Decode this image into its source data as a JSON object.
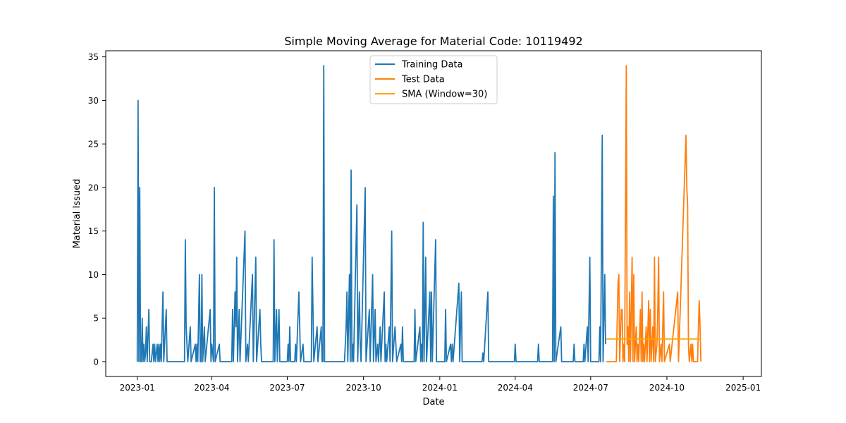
{
  "chart_data": {
    "type": "line",
    "title": "Simple Moving Average for Material Code: 10119492",
    "xlabel": "Date",
    "ylabel": "Material Issued",
    "xlim": [
      "2022-11-24",
      "2025-01-23"
    ],
    "ylim": [
      -1.7,
      35.7
    ],
    "x_ticks": [
      "2023-01",
      "2023-04",
      "2023-07",
      "2023-10",
      "2024-01",
      "2024-04",
      "2024-07",
      "2024-10",
      "2025-01"
    ],
    "y_ticks": [
      0,
      5,
      10,
      15,
      20,
      25,
      30,
      35
    ],
    "grid": false,
    "legend_position": "top-center",
    "series": [
      {
        "name": "Training Data",
        "color": "#1f77b4",
        "points": [
          [
            "2023-01-01",
            0
          ],
          [
            "2023-01-02",
            30
          ],
          [
            "2023-01-03",
            0
          ],
          [
            "2023-01-04",
            20
          ],
          [
            "2023-01-05",
            0
          ],
          [
            "2023-01-06",
            0
          ],
          [
            "2023-01-07",
            5
          ],
          [
            "2023-01-08",
            0
          ],
          [
            "2023-01-09",
            2
          ],
          [
            "2023-01-10",
            0
          ],
          [
            "2023-01-11",
            1
          ],
          [
            "2023-01-12",
            4
          ],
          [
            "2023-01-13",
            0
          ],
          [
            "2023-01-15",
            6
          ],
          [
            "2023-01-16",
            0
          ],
          [
            "2023-01-18",
            0
          ],
          [
            "2023-01-20",
            2
          ],
          [
            "2023-01-21",
            0
          ],
          [
            "2023-01-22",
            2
          ],
          [
            "2023-01-23",
            0
          ],
          [
            "2023-01-25",
            2
          ],
          [
            "2023-01-26",
            0
          ],
          [
            "2023-01-27",
            2
          ],
          [
            "2023-01-28",
            0
          ],
          [
            "2023-01-29",
            2
          ],
          [
            "2023-01-30",
            0
          ],
          [
            "2023-02-01",
            8
          ],
          [
            "2023-02-02",
            0
          ],
          [
            "2023-02-05",
            6
          ],
          [
            "2023-02-06",
            0
          ],
          [
            "2023-02-27",
            0
          ],
          [
            "2023-02-28",
            14
          ],
          [
            "2023-03-01",
            4
          ],
          [
            "2023-03-02",
            2
          ],
          [
            "2023-03-03",
            0
          ],
          [
            "2023-03-06",
            4
          ],
          [
            "2023-03-07",
            0
          ],
          [
            "2023-03-12",
            2
          ],
          [
            "2023-03-13",
            0
          ],
          [
            "2023-03-14",
            2
          ],
          [
            "2023-03-15",
            0
          ],
          [
            "2023-03-17",
            10
          ],
          [
            "2023-03-18",
            0
          ],
          [
            "2023-03-19",
            0
          ],
          [
            "2023-03-20",
            10
          ],
          [
            "2023-03-21",
            0
          ],
          [
            "2023-03-23",
            4
          ],
          [
            "2023-03-24",
            0
          ],
          [
            "2023-03-30",
            6
          ],
          [
            "2023-03-31",
            0
          ],
          [
            "2023-04-01",
            2
          ],
          [
            "2023-04-03",
            0
          ],
          [
            "2023-04-04",
            20
          ],
          [
            "2023-04-05",
            0
          ],
          [
            "2023-04-10",
            2
          ],
          [
            "2023-04-11",
            0
          ],
          [
            "2023-04-25",
            0
          ],
          [
            "2023-04-26",
            6
          ],
          [
            "2023-04-27",
            0
          ],
          [
            "2023-04-29",
            8
          ],
          [
            "2023-04-30",
            4
          ],
          [
            "2023-05-01",
            12
          ],
          [
            "2023-05-02",
            0
          ],
          [
            "2023-05-04",
            6
          ],
          [
            "2023-05-05",
            0
          ],
          [
            "2023-05-11",
            15
          ],
          [
            "2023-05-12",
            0
          ],
          [
            "2023-05-14",
            2
          ],
          [
            "2023-05-15",
            0
          ],
          [
            "2023-05-20",
            10
          ],
          [
            "2023-05-21",
            0
          ],
          [
            "2023-05-24",
            12
          ],
          [
            "2023-05-25",
            0
          ],
          [
            "2023-05-29",
            6
          ],
          [
            "2023-05-30",
            2
          ],
          [
            "2023-05-31",
            0
          ],
          [
            "2023-06-14",
            0
          ],
          [
            "2023-06-15",
            14
          ],
          [
            "2023-06-16",
            0
          ],
          [
            "2023-06-18",
            6
          ],
          [
            "2023-06-19",
            0
          ],
          [
            "2023-06-21",
            6
          ],
          [
            "2023-06-22",
            0
          ],
          [
            "2023-07-01",
            0
          ],
          [
            "2023-07-02",
            2
          ],
          [
            "2023-07-03",
            0
          ],
          [
            "2023-07-04",
            4
          ],
          [
            "2023-07-05",
            0
          ],
          [
            "2023-07-10",
            0
          ],
          [
            "2023-07-11",
            2
          ],
          [
            "2023-07-12",
            0
          ],
          [
            "2023-07-15",
            8
          ],
          [
            "2023-07-16",
            4
          ],
          [
            "2023-07-17",
            0
          ],
          [
            "2023-07-20",
            2
          ],
          [
            "2023-07-21",
            0
          ],
          [
            "2023-07-30",
            0
          ],
          [
            "2023-07-31",
            12
          ],
          [
            "2023-08-01",
            6
          ],
          [
            "2023-08-02",
            0
          ],
          [
            "2023-08-06",
            4
          ],
          [
            "2023-08-07",
            0
          ],
          [
            "2023-08-11",
            4
          ],
          [
            "2023-08-12",
            0
          ],
          [
            "2023-08-13",
            0
          ],
          [
            "2023-08-14",
            34
          ],
          [
            "2023-08-15",
            0
          ],
          [
            "2023-09-08",
            0
          ],
          [
            "2023-09-09",
            2
          ],
          [
            "2023-09-10",
            4
          ],
          [
            "2023-09-11",
            8
          ],
          [
            "2023-09-12",
            0
          ],
          [
            "2023-09-14",
            10
          ],
          [
            "2023-09-15",
            0
          ],
          [
            "2023-09-16",
            22
          ],
          [
            "2023-09-17",
            0
          ],
          [
            "2023-09-18",
            2
          ],
          [
            "2023-09-19",
            0
          ],
          [
            "2023-09-23",
            18
          ],
          [
            "2023-09-24",
            0
          ],
          [
            "2023-09-26",
            8
          ],
          [
            "2023-09-27",
            2
          ],
          [
            "2023-09-28",
            0
          ],
          [
            "2023-10-03",
            20
          ],
          [
            "2023-10-04",
            0
          ],
          [
            "2023-10-08",
            6
          ],
          [
            "2023-10-09",
            0
          ],
          [
            "2023-10-12",
            10
          ],
          [
            "2023-10-13",
            0
          ],
          [
            "2023-10-15",
            6
          ],
          [
            "2023-10-16",
            0
          ],
          [
            "2023-10-18",
            2
          ],
          [
            "2023-10-19",
            0
          ],
          [
            "2023-10-21",
            4
          ],
          [
            "2023-10-22",
            0
          ],
          [
            "2023-10-26",
            8
          ],
          [
            "2023-10-27",
            0
          ],
          [
            "2023-10-28",
            2
          ],
          [
            "2023-10-29",
            0
          ],
          [
            "2023-11-01",
            4
          ],
          [
            "2023-11-02",
            0
          ],
          [
            "2023-11-04",
            15
          ],
          [
            "2023-11-05",
            0
          ],
          [
            "2023-11-08",
            4
          ],
          [
            "2023-11-09",
            2
          ],
          [
            "2023-11-10",
            0
          ],
          [
            "2023-11-15",
            2
          ],
          [
            "2023-11-16",
            0
          ],
          [
            "2023-11-17",
            4
          ],
          [
            "2023-11-18",
            0
          ],
          [
            "2023-12-01",
            0
          ],
          [
            "2023-12-02",
            6
          ],
          [
            "2023-12-03",
            0
          ],
          [
            "2023-12-08",
            4
          ],
          [
            "2023-12-09",
            0
          ],
          [
            "2023-12-10",
            2
          ],
          [
            "2023-12-11",
            0
          ],
          [
            "2023-12-12",
            16
          ],
          [
            "2023-12-13",
            0
          ],
          [
            "2023-12-15",
            12
          ],
          [
            "2023-12-16",
            0
          ],
          [
            "2023-12-20",
            8
          ],
          [
            "2023-12-21",
            0
          ],
          [
            "2023-12-22",
            8
          ],
          [
            "2023-12-23",
            0
          ],
          [
            "2023-12-27",
            14
          ],
          [
            "2023-12-28",
            0
          ],
          [
            "2024-01-07",
            0
          ],
          [
            "2024-01-08",
            6
          ],
          [
            "2024-01-09",
            0
          ],
          [
            "2024-01-14",
            2
          ],
          [
            "2024-01-15",
            0
          ],
          [
            "2024-01-16",
            2
          ],
          [
            "2024-01-17",
            0
          ],
          [
            "2024-01-24",
            9
          ],
          [
            "2024-01-25",
            0
          ],
          [
            "2024-01-27",
            8
          ],
          [
            "2024-01-28",
            0
          ],
          [
            "2024-02-21",
            0
          ],
          [
            "2024-02-22",
            1
          ],
          [
            "2024-02-23",
            0
          ],
          [
            "2024-02-28",
            8
          ],
          [
            "2024-02-29",
            0
          ],
          [
            "2024-03-31",
            0
          ],
          [
            "2024-04-01",
            2
          ],
          [
            "2024-04-02",
            0
          ],
          [
            "2024-04-28",
            0
          ],
          [
            "2024-04-29",
            2
          ],
          [
            "2024-04-30",
            0
          ],
          [
            "2024-05-16",
            0
          ],
          [
            "2024-05-17",
            19
          ],
          [
            "2024-05-18",
            0
          ],
          [
            "2024-05-19",
            24
          ],
          [
            "2024-05-20",
            0
          ],
          [
            "2024-05-26",
            4
          ],
          [
            "2024-05-27",
            0
          ],
          [
            "2024-06-10",
            0
          ],
          [
            "2024-06-11",
            2
          ],
          [
            "2024-06-12",
            0
          ],
          [
            "2024-06-22",
            0
          ],
          [
            "2024-06-23",
            2
          ],
          [
            "2024-06-24",
            0
          ],
          [
            "2024-06-27",
            4
          ],
          [
            "2024-06-28",
            0
          ],
          [
            "2024-06-30",
            12
          ],
          [
            "2024-07-01",
            0
          ],
          [
            "2024-07-11",
            0
          ],
          [
            "2024-07-12",
            4
          ],
          [
            "2024-07-13",
            0
          ],
          [
            "2024-07-15",
            26
          ],
          [
            "2024-07-16",
            0
          ],
          [
            "2024-07-18",
            10
          ],
          [
            "2024-07-19",
            2
          ]
        ]
      },
      {
        "name": "Test Data",
        "color": "#ff7f0e",
        "points": [
          [
            "2024-07-20",
            0
          ],
          [
            "2024-08-01",
            0
          ],
          [
            "2024-08-03",
            9
          ],
          [
            "2024-08-04",
            10
          ],
          [
            "2024-08-05",
            0
          ],
          [
            "2024-08-07",
            6
          ],
          [
            "2024-08-08",
            6
          ],
          [
            "2024-08-09",
            0
          ],
          [
            "2024-08-10",
            2
          ],
          [
            "2024-08-11",
            0
          ],
          [
            "2024-08-13",
            34
          ],
          [
            "2024-08-14",
            2
          ],
          [
            "2024-08-15",
            4
          ],
          [
            "2024-08-16",
            0
          ],
          [
            "2024-08-17",
            8
          ],
          [
            "2024-08-18",
            0
          ],
          [
            "2024-08-20",
            12
          ],
          [
            "2024-08-21",
            0
          ],
          [
            "2024-08-22",
            10
          ],
          [
            "2024-08-23",
            0
          ],
          [
            "2024-08-25",
            4
          ],
          [
            "2024-08-26",
            0
          ],
          [
            "2024-08-27",
            2
          ],
          [
            "2024-08-28",
            0
          ],
          [
            "2024-08-30",
            6
          ],
          [
            "2024-08-31",
            0
          ],
          [
            "2024-09-01",
            8
          ],
          [
            "2024-09-02",
            0
          ],
          [
            "2024-09-03",
            2
          ],
          [
            "2024-09-04",
            0
          ],
          [
            "2024-09-06",
            4
          ],
          [
            "2024-09-07",
            0
          ],
          [
            "2024-09-09",
            7
          ],
          [
            "2024-09-10",
            0
          ],
          [
            "2024-09-11",
            6
          ],
          [
            "2024-09-12",
            0
          ],
          [
            "2024-09-14",
            4
          ],
          [
            "2024-09-15",
            0
          ],
          [
            "2024-09-16",
            12
          ],
          [
            "2024-09-17",
            0
          ],
          [
            "2024-09-19",
            2
          ],
          [
            "2024-09-20",
            6
          ],
          [
            "2024-09-21",
            12
          ],
          [
            "2024-09-22",
            0
          ],
          [
            "2024-09-24",
            2
          ],
          [
            "2024-09-25",
            0
          ],
          [
            "2024-09-27",
            8
          ],
          [
            "2024-09-28",
            0
          ],
          [
            "2024-10-04",
            2
          ],
          [
            "2024-10-05",
            0
          ],
          [
            "2024-10-14",
            8
          ],
          [
            "2024-10-15",
            0
          ],
          [
            "2024-10-24",
            26
          ],
          [
            "2024-10-25",
            20
          ],
          [
            "2024-10-26",
            18
          ],
          [
            "2024-10-27",
            2
          ],
          [
            "2024-10-28",
            0
          ],
          [
            "2024-10-30",
            2
          ],
          [
            "2024-10-31",
            0
          ],
          [
            "2024-11-01",
            2
          ],
          [
            "2024-11-02",
            0
          ],
          [
            "2024-11-07",
            0
          ],
          [
            "2024-11-08",
            4
          ],
          [
            "2024-11-09",
            7
          ],
          [
            "2024-11-10",
            4
          ],
          [
            "2024-11-11",
            0
          ]
        ]
      },
      {
        "name": "SMA (Window=30)",
        "color": "#ffa500",
        "points": [
          [
            "2024-07-20",
            2.6
          ],
          [
            "2024-11-11",
            2.6
          ]
        ]
      }
    ]
  }
}
